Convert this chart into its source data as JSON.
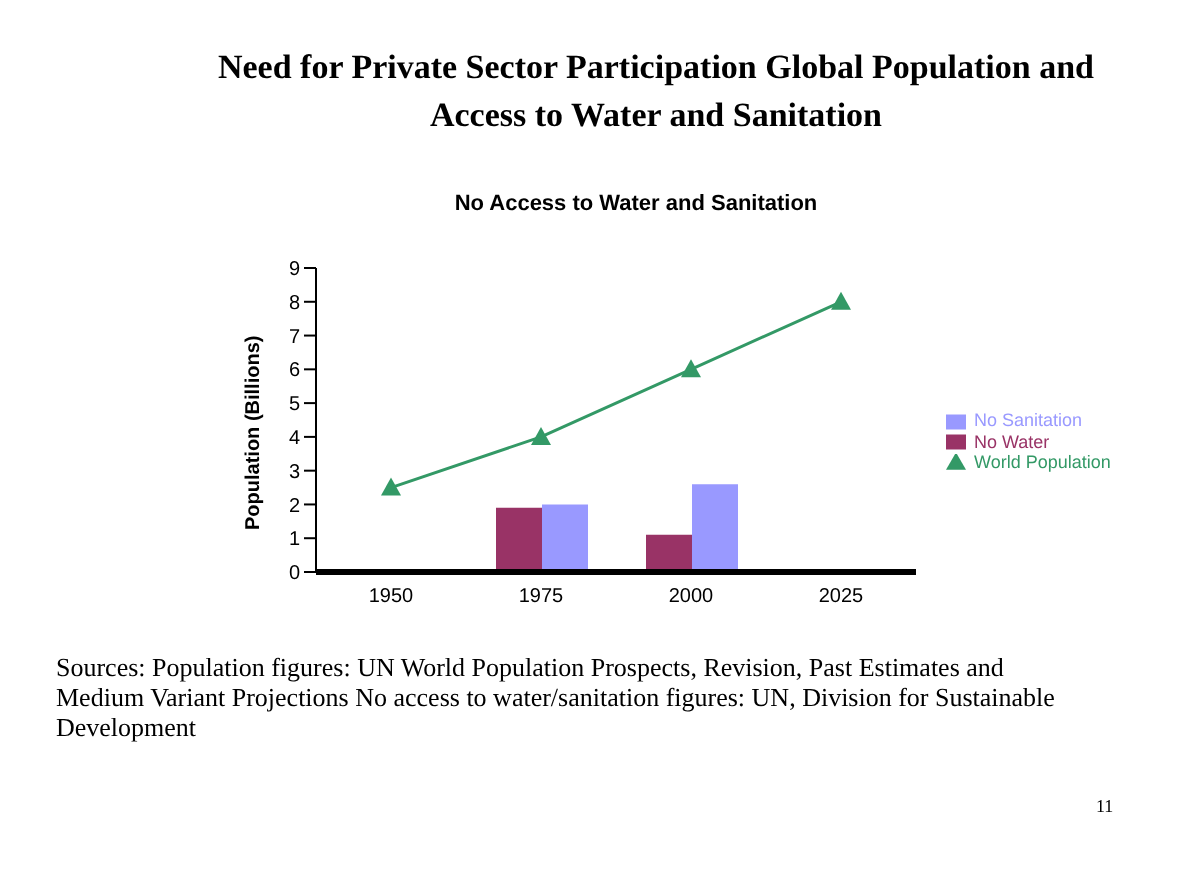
{
  "chart_data": {
    "type": "bar",
    "title": "Need for Private Sector Participation Global Population and Access to Water and Sanitation",
    "subtitle": "No Access to Water and Sanitation",
    "ylabel": "Population (Billions)",
    "categories": [
      "1950",
      "1975",
      "2000",
      "2025"
    ],
    "series": [
      {
        "name": "No Water",
        "color": "#993366",
        "values": [
          null,
          1.9,
          1.1,
          null
        ]
      },
      {
        "name": "No Sanitation",
        "color": "#9999ff",
        "values": [
          null,
          2.0,
          2.6,
          null
        ]
      },
      {
        "name": "World Population",
        "type": "line",
        "color": "#339966",
        "values": [
          2.5,
          4,
          6,
          8
        ]
      }
    ],
    "ylim": [
      0,
      9
    ],
    "yticks": [
      0,
      1,
      2,
      3,
      4,
      5,
      6,
      7,
      8,
      9
    ],
    "grid": false,
    "legend": "right",
    "marker": "triangle",
    "annotations": [
      "Sources: Population figures: UN World Population Prospects, Revision, Past Estimates and Medium Variant Projections No access to water/sanitation figures: UN, Division for Sustainable Development",
      "11"
    ]
  }
}
